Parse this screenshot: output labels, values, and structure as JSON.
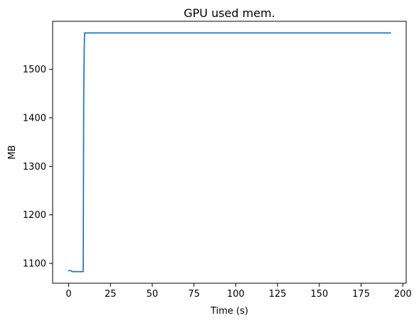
{
  "chart_data": {
    "type": "line",
    "title": "GPU used mem.",
    "xlabel": "Time (s)",
    "ylabel": "MB",
    "xlim": [
      -9.6,
      202
    ],
    "ylim": [
      1059,
      1599
    ],
    "x_ticks": [
      0,
      25,
      50,
      75,
      100,
      125,
      150,
      175,
      200
    ],
    "y_ticks": [
      1100,
      1200,
      1300,
      1400,
      1500
    ],
    "grid": false,
    "series": [
      {
        "color": "#1f77b4",
        "x": [
          0,
          1.5,
          2,
          4,
          6,
          8,
          8.7,
          9.0,
          9.3,
          9.5,
          10,
          30,
          60,
          100,
          150,
          192.5
        ],
        "y": [
          1085,
          1085,
          1083,
          1083,
          1083,
          1083,
          1083,
          1440,
          1540,
          1575,
          1575,
          1575,
          1575,
          1575,
          1575,
          1575
        ]
      }
    ]
  }
}
